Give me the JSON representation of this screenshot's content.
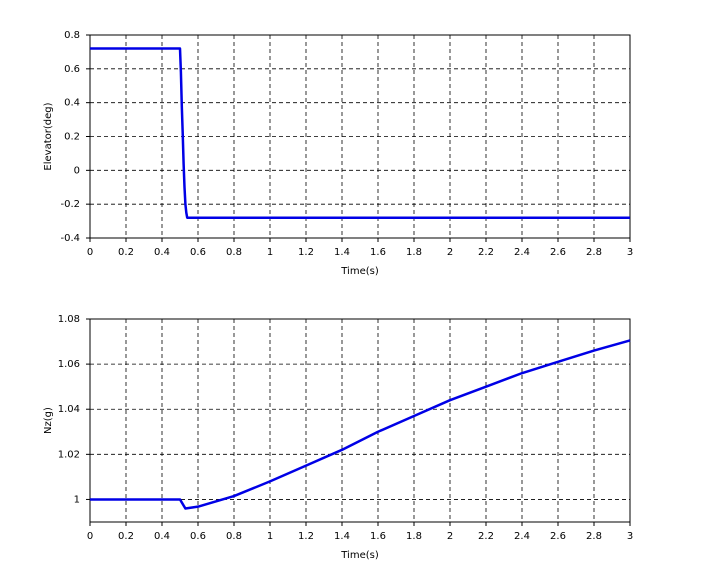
{
  "chart_data": [
    {
      "type": "line",
      "ylabel": "Elevator(deg)",
      "xlabel": "Time(s)",
      "x": [
        0,
        0.5,
        0.505,
        0.51,
        0.515,
        0.52,
        0.525,
        0.53,
        0.535,
        0.54,
        3
      ],
      "values": [
        0.72,
        0.72,
        0.58,
        0.38,
        0.22,
        0.04,
        -0.1,
        -0.2,
        -0.25,
        -0.28,
        -0.28
      ],
      "color": "#0000e6",
      "xlim": [
        0,
        3
      ],
      "xticks": [
        0,
        0.2,
        0.4,
        0.6,
        0.8,
        1,
        1.2,
        1.4,
        1.6,
        1.8,
        2,
        2.2,
        2.4,
        2.6,
        2.8,
        3
      ],
      "ylim": [
        -0.4,
        0.8
      ],
      "yticks": [
        -0.4,
        -0.2,
        0,
        0.2,
        0.4,
        0.6,
        0.8
      ],
      "grid": true
    },
    {
      "type": "line",
      "ylabel": "Nz(g)",
      "xlabel": "Time(s)",
      "x": [
        0,
        0.5,
        0.53,
        0.6,
        0.8,
        1.0,
        1.2,
        1.4,
        1.6,
        1.8,
        2.0,
        2.2,
        2.4,
        2.6,
        2.8,
        3.0
      ],
      "values": [
        1,
        1,
        0.996,
        0.9968,
        1.0015,
        1.008,
        1.015,
        1.022,
        1.03,
        1.037,
        1.044,
        1.05,
        1.056,
        1.061,
        1.066,
        1.0705
      ],
      "color": "#0000e6",
      "xlim": [
        0,
        3
      ],
      "xticks": [
        0,
        0.2,
        0.4,
        0.6,
        0.8,
        1,
        1.2,
        1.4,
        1.6,
        1.8,
        2,
        2.2,
        2.4,
        2.6,
        2.8,
        3
      ],
      "ylim": [
        0.99,
        1.08
      ],
      "yticks": [
        1,
        1.02,
        1.04,
        1.06,
        1.08
      ],
      "grid": true
    }
  ]
}
